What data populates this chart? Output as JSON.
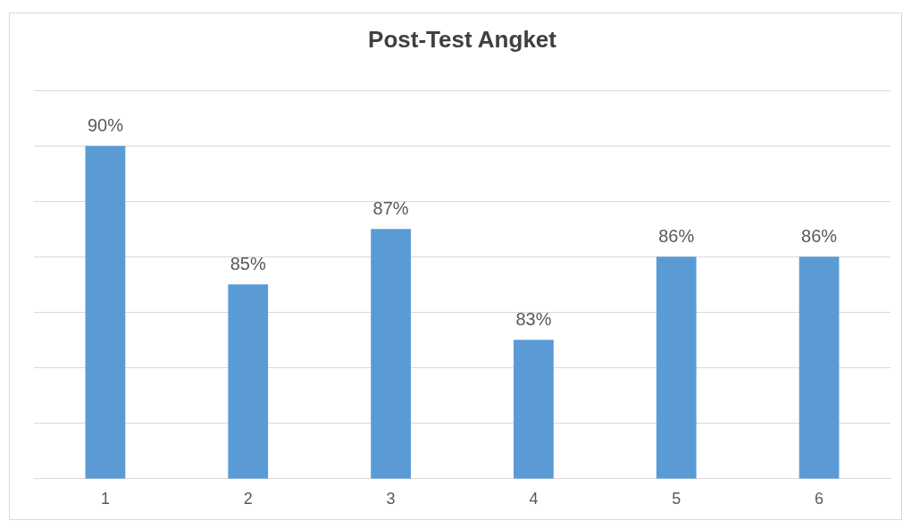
{
  "chart_data": {
    "type": "bar",
    "title": "Post-Test Angket",
    "categories": [
      "1",
      "2",
      "3",
      "4",
      "5",
      "6"
    ],
    "values": [
      90,
      85,
      87,
      83,
      86,
      86
    ],
    "value_labels": [
      "90%",
      "85%",
      "87%",
      "83%",
      "86%",
      "86%"
    ],
    "color": "#5b9bd5",
    "ylim": [
      78,
      92
    ],
    "yticks": [
      {
        "value": 78,
        "label": null
      },
      {
        "value": 80,
        "label": null
      },
      {
        "value": 82,
        "label": null
      },
      {
        "value": 84,
        "label": null
      },
      {
        "value": 86,
        "label": null
      },
      {
        "value": 88,
        "label": null
      },
      {
        "value": 90,
        "label": null
      },
      {
        "value": 92,
        "label": null
      }
    ],
    "grid": "y",
    "tick_labels": "x"
  }
}
